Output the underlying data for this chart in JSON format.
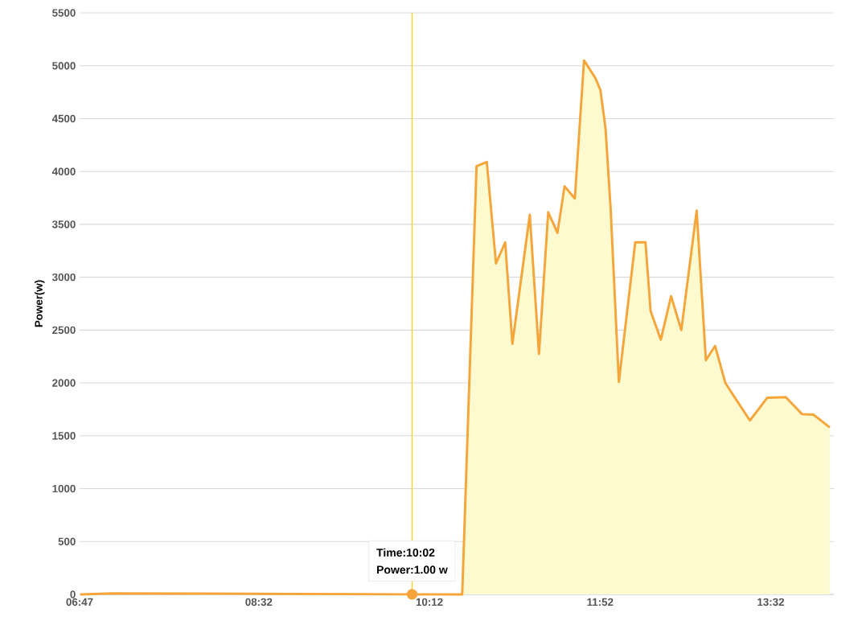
{
  "chart_data": {
    "type": "area",
    "ylabel": "Power(w)",
    "x": [
      6.79,
      7.1,
      10.03,
      10.48,
      10.52,
      10.66,
      10.76,
      10.85,
      10.94,
      11.01,
      11.18,
      11.27,
      11.36,
      11.45,
      11.52,
      11.62,
      11.71,
      11.82,
      11.87,
      11.92,
      11.97,
      12.05,
      12.21,
      12.31,
      12.36,
      12.46,
      12.56,
      12.66,
      12.81,
      12.9,
      12.99,
      13.09,
      13.17,
      13.33,
      13.5,
      13.68,
      13.84,
      13.95,
      14.11
    ],
    "series": [
      {
        "color": "#f5a53a",
        "values": [
          0,
          10,
          1,
          0,
          0,
          4050,
          4090,
          3130,
          3330,
          2370,
          3590,
          2275,
          3615,
          3420,
          3860,
          3745,
          5050,
          4885,
          4770,
          4405,
          3645,
          2010,
          3330,
          3330,
          2680,
          2410,
          2820,
          2500,
          3630,
          2215,
          2350,
          2000,
          1880,
          1645,
          1860,
          1865,
          1705,
          1700,
          1580
        ]
      }
    ],
    "xlim": [
      6.7833,
      14.15
    ],
    "xticks": [
      {
        "value": 6.7833,
        "label": "06:47"
      },
      {
        "value": 8.5333,
        "label": "08:32"
      },
      {
        "value": 10.2,
        "label": "10:12"
      },
      {
        "value": 11.8667,
        "label": "11:52"
      },
      {
        "value": 13.5333,
        "label": "13:32"
      }
    ],
    "ylim": [
      0,
      5500
    ],
    "yticks": [
      0,
      500,
      1000,
      1500,
      2000,
      2500,
      3000,
      3500,
      4000,
      4500,
      5000,
      5500
    ],
    "grid": "y",
    "marker": "none",
    "line_style": "solid",
    "ref_lines": [
      {
        "axis": "x",
        "value": 10.03,
        "color": "#f5d426"
      }
    ],
    "annotations": [
      "Time:10:02",
      "Power:1.00 w"
    ]
  }
}
